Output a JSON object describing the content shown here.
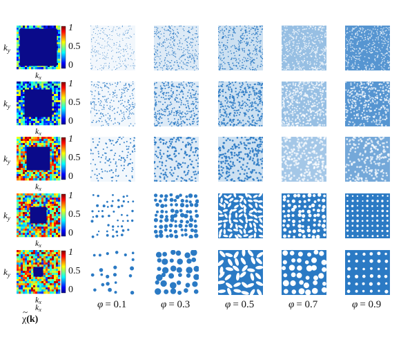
{
  "figure": {
    "row_axis_y_label": "k",
    "row_axis_y_sub": "y",
    "row_axis_x_label": "k",
    "row_axis_x_sub": "x",
    "colorbar_ticks": [
      "1",
      "0.5",
      "0"
    ],
    "spectrum_caption_tilde": "~",
    "spectrum_caption_chi": "χ",
    "spectrum_caption_arg": "(k)",
    "phi_symbol": "φ",
    "phi_values": [
      "= 0.1",
      "= 0.3",
      "= 0.5",
      "= 0.7",
      "= 0.9"
    ],
    "colors": {
      "pattern_blue": "#2b7ac4",
      "spectrum_dark": "#0a0a8a",
      "background": "#ffffff"
    },
    "rows": 5,
    "columns": 5
  }
}
